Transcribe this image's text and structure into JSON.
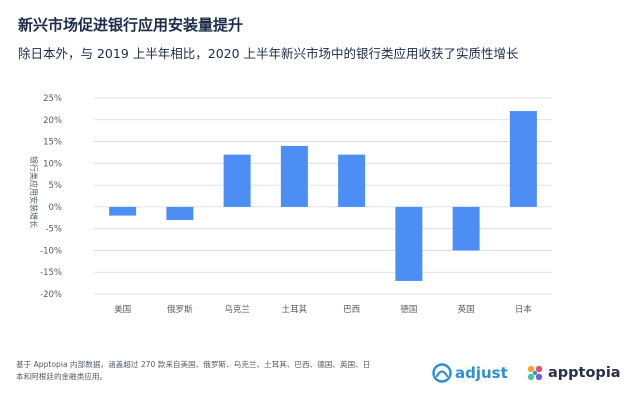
{
  "header": {
    "title": "新兴市场促进银行应用安装量提升",
    "subtitle": "除日本外，与 2019 上半年相比，2020 上半年新兴市场中的银行类应用收获了实质性增长"
  },
  "footnote": "基于 Apptopia 内部数据，涵盖超过 270 款来自美国、俄罗斯、乌克兰、土耳其、巴西、德国、英国、日本和阿根廷的金融类应用。",
  "logos": {
    "adjust": "adjust",
    "apptopia": "apptopia"
  },
  "colors": {
    "bar": "#4d8ef5",
    "grid": "#d6dae1",
    "axis_text": "#555b66",
    "title": "#1d2b4a",
    "adjust_brand": "#2e8fd6"
  },
  "chart_data": {
    "type": "bar",
    "title": "新兴市场促进银行应用安装量提升",
    "ylabel": "银行类应用安装增长",
    "xlabel": "",
    "categories": [
      "美国",
      "俄罗斯",
      "乌克兰",
      "土耳其",
      "巴西",
      "德国",
      "英国",
      "日本"
    ],
    "values": [
      -2,
      -3,
      12,
      14,
      12,
      -17,
      -10,
      22
    ],
    "ylim": [
      -20,
      25
    ],
    "yticks": [
      -20,
      -15,
      -10,
      -5,
      0,
      5,
      10,
      15,
      20,
      25
    ],
    "ytick_labels": [
      "-20%",
      "-15%",
      "-10%",
      "-5%",
      "0%",
      "5%",
      "10%",
      "15%",
      "20%",
      "25%"
    ],
    "grid": true,
    "legend": "none"
  }
}
